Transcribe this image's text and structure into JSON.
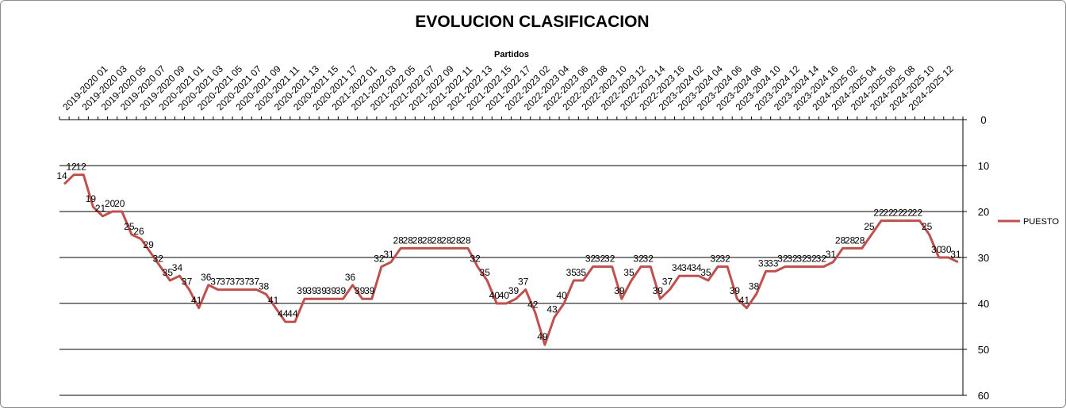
{
  "chart_data": {
    "type": "line",
    "title": "EVOLUCION CLASIFICACION",
    "xlabel": "Partidos",
    "ylabel": "",
    "ylim": [
      0,
      60
    ],
    "y_inverted": true,
    "y_axis_side": "right",
    "y_ticks": [
      0,
      10,
      20,
      30,
      40,
      50,
      60
    ],
    "grid": true,
    "legend_position": "right",
    "series_color": "#c0504d",
    "x_tick_labels": [
      "2019-2020 01",
      "2019-2020 03",
      "2019-2020 05",
      "2019-2020 07",
      "2019-2020 09",
      "2020-2021 01",
      "2020-2021 03",
      "2020-2021 05",
      "2020-2021 07",
      "2020-2021 09",
      "2020-2021 11",
      "2020-2021 13",
      "2020-2021 15",
      "2020-2021 17",
      "2021-2022 01",
      "2021-2022 03",
      "2021-2022 05",
      "2021-2022 07",
      "2021-2022 09",
      "2021-2022 11",
      "2021-2022 13",
      "2021-2022 15",
      "2021-2022 17",
      "2022-2023 02",
      "2022-2023 04",
      "2022-2023 06",
      "2022-2023 08",
      "2022-2023 10",
      "2022-2023 12",
      "2022-2023 14",
      "2022-2023 16",
      "2023-2024 02",
      "2023-2024 04",
      "2023-2024 06",
      "2023-2024 08",
      "2023-2024 10",
      "2023-2024 12",
      "2023-2024 14",
      "2023-2024 16",
      "2024-2025 02",
      "2024-2025 04",
      "2024-2025 06",
      "2024-2025 08",
      "2024-2025 10",
      "2024-2025 12"
    ],
    "series": [
      {
        "name": "PUESTO",
        "values": [
          14,
          12,
          12,
          19,
          21,
          20,
          20,
          25,
          26,
          29,
          32,
          35,
          34,
          37,
          41,
          36,
          37,
          37,
          37,
          37,
          37,
          38,
          41,
          44,
          44,
          39,
          39,
          39,
          39,
          39,
          36,
          39,
          39,
          32,
          31,
          28,
          28,
          28,
          28,
          28,
          28,
          28,
          28,
          32,
          35,
          40,
          40,
          39,
          37,
          42,
          49,
          43,
          40,
          35,
          35,
          32,
          32,
          32,
          39,
          35,
          32,
          32,
          39,
          37,
          34,
          34,
          34,
          35,
          32,
          32,
          39,
          41,
          38,
          33,
          33,
          32,
          32,
          32,
          32,
          32,
          31,
          28,
          28,
          28,
          25,
          22,
          22,
          22,
          22,
          22,
          25,
          30,
          30,
          31
        ]
      }
    ]
  }
}
